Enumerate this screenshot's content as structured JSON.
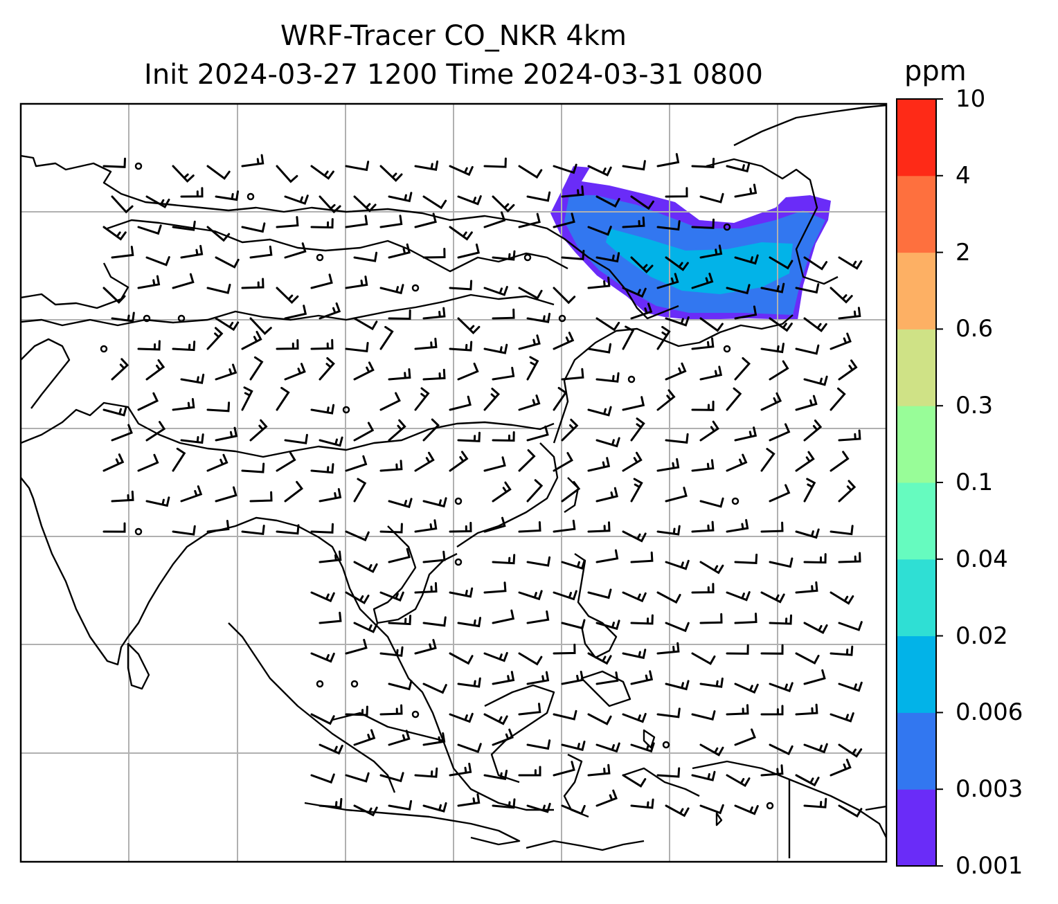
{
  "title": {
    "line1": "WRF-Tracer CO_NKR 4km",
    "line2": "Init 2024-03-27 1200 Time 2024-03-31 0800"
  },
  "colorbar": {
    "unit": "ppm",
    "levels": [
      "0.001",
      "0.003",
      "0.006",
      "0.02",
      "0.04",
      "0.1",
      "0.3",
      "0.6",
      "2",
      "4",
      "10"
    ],
    "colors": [
      "#6a2cf8",
      "#3277f0",
      "#02b3e8",
      "#2fdfd4",
      "#66fbbf",
      "#98fd98",
      "#cfe286",
      "#fdb064",
      "#fe703e",
      "#fe2a17"
    ]
  },
  "map": {
    "features": [
      "coastlines",
      "borders",
      "gridlines",
      "wind-barbs",
      "tracer-plume"
    ],
    "plume_colors_present": [
      "#6a2cf8",
      "#3277f0",
      "#02b3e8"
    ]
  }
}
